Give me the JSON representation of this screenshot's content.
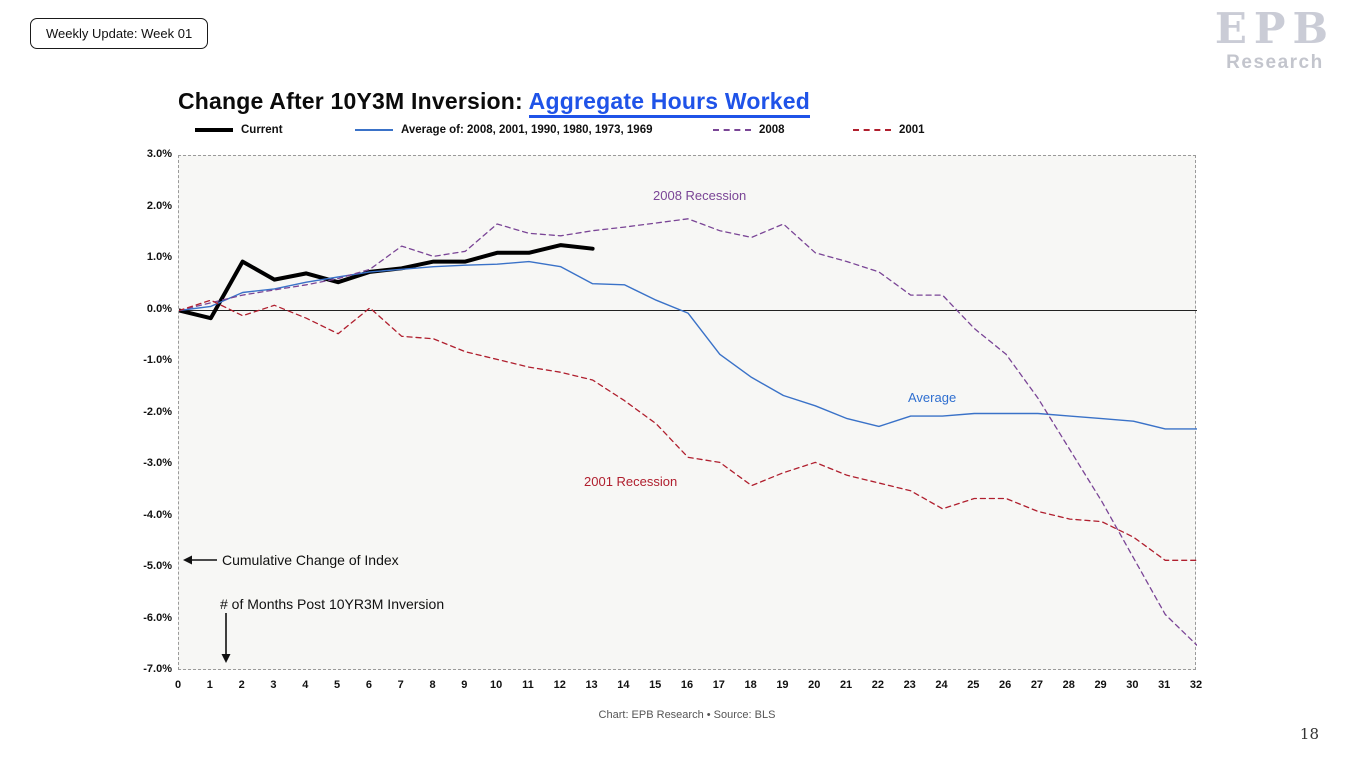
{
  "badge": {
    "label": "Weekly Update: Week 01"
  },
  "logo": {
    "line1": "EPB",
    "line2": "Research"
  },
  "title": {
    "prefix": "Change After 10Y3M Inversion: ",
    "highlight": "Aggregate Hours Worked"
  },
  "legend": [
    {
      "label": "Current"
    },
    {
      "label": "Average of: 2008, 2001, 1990, 1980, 1973, 1969"
    },
    {
      "label": "2008"
    },
    {
      "label": "2001"
    }
  ],
  "annotations": {
    "recession_2008": "2008 Recession",
    "average": "Average",
    "recession_2001": "2001 Recession",
    "cumulative": "Cumulative Change of Index",
    "months_axis": "# of Months Post 10YR3M Inversion"
  },
  "footer": {
    "credit": "Chart: EPB Research  •  Source: BLS",
    "page": "18"
  },
  "colors": {
    "title_link": "#1f53e8",
    "current": "#000000",
    "average": "#3a72c8",
    "y2008": "#7a4596",
    "y2001": "#b01f2e"
  },
  "chart_data": {
    "type": "line",
    "title": "Change After 10Y3M Inversion: Aggregate Hours Worked",
    "xlabel": "# of Months Post 10YR3M Inversion",
    "ylabel": "Cumulative Change of Index",
    "xlim": [
      0,
      32
    ],
    "ylim": [
      -7,
      3
    ],
    "grid": false,
    "legend_position": "top",
    "x_ticks": [
      0,
      1,
      2,
      3,
      4,
      5,
      6,
      7,
      8,
      9,
      10,
      11,
      12,
      13,
      14,
      15,
      16,
      17,
      18,
      19,
      20,
      21,
      22,
      23,
      24,
      25,
      26,
      27,
      28,
      29,
      30,
      31,
      32
    ],
    "y_ticks": [
      3,
      2,
      1,
      0,
      -1,
      -2,
      -3,
      -4,
      -5,
      -6,
      -7
    ],
    "series": [
      {
        "name": "Current",
        "color": "#000000",
        "width": 4,
        "dash": "",
        "x": [
          0,
          1,
          2,
          3,
          4,
          5,
          6,
          7,
          8,
          9,
          10,
          11,
          12,
          13
        ],
        "values": [
          0,
          -0.15,
          0.95,
          0.6,
          0.72,
          0.55,
          0.75,
          0.82,
          0.95,
          0.95,
          1.12,
          1.12,
          1.27,
          1.2
        ]
      },
      {
        "name": "Average of: 2008, 2001, 1990, 1980, 1973, 1969",
        "color": "#3a72c8",
        "width": 1.4,
        "dash": "",
        "values": [
          0,
          0.08,
          0.35,
          0.42,
          0.55,
          0.65,
          0.75,
          0.8,
          0.85,
          0.88,
          0.9,
          0.95,
          0.85,
          0.52,
          0.5,
          0.2,
          -0.05,
          -0.85,
          -1.3,
          -1.65,
          -1.85,
          -2.1,
          -2.25,
          -2.05,
          -2.05,
          -2.0,
          -2.0,
          -2.0,
          -2.05,
          -2.1,
          -2.15,
          -2.3,
          -2.3
        ]
      },
      {
        "name": "2008",
        "color": "#7a4596",
        "width": 1.3,
        "dash": "5 4",
        "values": [
          0,
          0.15,
          0.3,
          0.4,
          0.5,
          0.62,
          0.8,
          1.25,
          1.05,
          1.15,
          1.68,
          1.5,
          1.45,
          1.55,
          1.62,
          1.7,
          1.78,
          1.55,
          1.42,
          1.68,
          1.12,
          0.95,
          0.75,
          0.3,
          0.3,
          -0.35,
          -0.85,
          -1.7,
          -2.7,
          -3.7,
          -4.8,
          -5.9,
          -6.5
        ]
      },
      {
        "name": "2001",
        "color": "#b01f2e",
        "width": 1.3,
        "dash": "5 4",
        "values": [
          0,
          0.2,
          -0.1,
          0.1,
          -0.15,
          -0.45,
          0.05,
          -0.5,
          -0.55,
          -0.8,
          -0.95,
          -1.1,
          -1.2,
          -1.35,
          -1.75,
          -2.2,
          -2.85,
          -2.95,
          -3.4,
          -3.15,
          -2.95,
          -3.2,
          -3.35,
          -3.5,
          -3.85,
          -3.65,
          -3.65,
          -3.9,
          -4.05,
          -4.1,
          -4.4,
          -4.85,
          -4.85
        ]
      }
    ]
  }
}
